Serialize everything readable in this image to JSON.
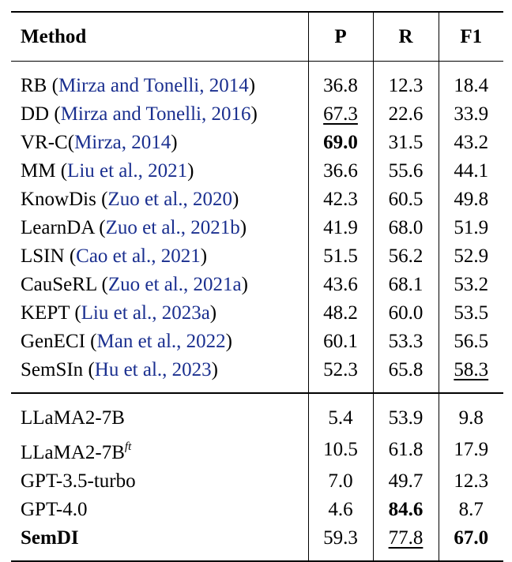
{
  "header": {
    "method": "Method",
    "p": "P",
    "r": "R",
    "f1": "F1"
  },
  "group1": [
    {
      "name": "RB",
      "cite": "Mirza and Tonelli, 2014",
      "p": "36.8",
      "r": "12.3",
      "f1": "18.4"
    },
    {
      "name": "DD",
      "cite": "Mirza and Tonelli, 2016",
      "p": "67.3",
      "r": "22.6",
      "f1": "33.9"
    },
    {
      "name": "VR-C",
      "cite": "Mirza, 2014",
      "p": "69.0",
      "r": "31.5",
      "f1": "43.2"
    },
    {
      "name": "MM",
      "cite": "Liu et al., 2021",
      "p": "36.6",
      "r": "55.6",
      "f1": "44.1"
    },
    {
      "name": "KnowDis",
      "cite": "Zuo et al., 2020",
      "p": "42.3",
      "r": "60.5",
      "f1": "49.8"
    },
    {
      "name": "LearnDA",
      "cite": "Zuo et al., 2021b",
      "p": "41.9",
      "r": "68.0",
      "f1": "51.9"
    },
    {
      "name": "LSIN",
      "cite": "Cao et al., 2021",
      "p": "51.5",
      "r": "56.2",
      "f1": "52.9"
    },
    {
      "name": "CauSeRL",
      "cite": "Zuo et al., 2021a",
      "p": "43.6",
      "r": "68.1",
      "f1": "53.2"
    },
    {
      "name": "KEPT",
      "cite": "Liu et al., 2023a",
      "p": "48.2",
      "r": "60.0",
      "f1": "53.5"
    },
    {
      "name": "GenECI",
      "cite": "Man et al., 2022",
      "p": "60.1",
      "r": "53.3",
      "f1": "56.5"
    },
    {
      "name": "SemSIn",
      "cite": "Hu et al., 2023",
      "p": "52.3",
      "r": "65.8",
      "f1": "58.3"
    }
  ],
  "group2": [
    {
      "name": "LLaMA2-7B",
      "p": "5.4",
      "r": "53.9",
      "f1": "9.8"
    },
    {
      "name": "LLaMA2-7B",
      "sup": "ft",
      "p": "10.5",
      "r": "61.8",
      "f1": "17.9"
    },
    {
      "name": "GPT-3.5-turbo",
      "p": "7.0",
      "r": "49.7",
      "f1": "12.3"
    },
    {
      "name": "GPT-4.0",
      "p": "4.6",
      "r": "84.6",
      "f1": "8.7"
    },
    {
      "name": "SemDI",
      "p": "59.3",
      "r": "77.8",
      "f1": "67.0"
    }
  ]
}
